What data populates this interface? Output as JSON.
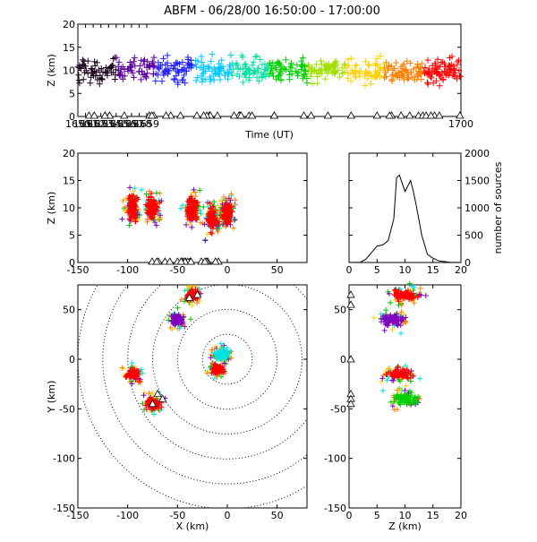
{
  "title": "ABFM - 06/28/00 16:50:00 - 17:00:00",
  "chart_data": [
    {
      "id": "time_height",
      "type": "scatter",
      "xlabel": "Time (UT)",
      "ylabel": "Z (km)",
      "xlim": [
        1650,
        1700
      ],
      "ylim": [
        0,
        20
      ],
      "xticks": [
        "1650",
        "1651",
        "1652",
        "1653",
        "1654",
        "1655",
        "1656",
        "1657",
        "1658",
        "1659",
        "1700"
      ],
      "yticks": [
        "0",
        "5",
        "10",
        "15",
        "20"
      ],
      "color_scale": [
        "#1a001a",
        "#5a00a0",
        "#2020ff",
        "#00c8ff",
        "#00e0a0",
        "#00d000",
        "#a0e000",
        "#ffd000",
        "#ff8000",
        "#ff0000"
      ],
      "z_band": [
        5,
        15
      ],
      "triangle_markers_at_z": 0
    },
    {
      "id": "xz_projection",
      "type": "scatter",
      "xlabel": "",
      "ylabel": "Z (km)",
      "xlim": [
        -150,
        80
      ],
      "ylim": [
        0,
        20
      ],
      "xticks": [
        "-150",
        "-100",
        "-50",
        "0",
        "50"
      ],
      "yticks": [
        "0",
        "5",
        "10",
        "15",
        "20"
      ],
      "clusters": [
        {
          "x": -95,
          "z": 10,
          "color": "#ff0000"
        },
        {
          "x": -75,
          "z": 10,
          "color": "#ff0000"
        },
        {
          "x": -35,
          "z": 10,
          "color": "#ff0000"
        },
        {
          "x": -15,
          "z": 8,
          "color": "#ff0000"
        },
        {
          "x": 0,
          "z": 9,
          "color": "#ff0000"
        }
      ]
    },
    {
      "id": "height_histogram",
      "type": "line",
      "xlabel": "",
      "ylabel": "number of sources",
      "xlim": [
        0,
        20
      ],
      "ylim": [
        0,
        2000
      ],
      "xticks": [
        "0",
        "5",
        "10",
        "15",
        "20"
      ],
      "yticks": [
        "0",
        "500",
        "1000",
        "1500",
        "2000"
      ],
      "z_km": [
        0,
        2,
        3,
        4,
        5,
        6,
        7,
        8,
        8.5,
        9,
        9.5,
        10,
        10.5,
        11,
        11.5,
        12,
        13,
        14,
        15,
        16,
        18,
        20
      ],
      "counts": [
        0,
        5,
        60,
        180,
        300,
        320,
        400,
        800,
        1550,
        1600,
        1450,
        1300,
        1400,
        1500,
        1300,
        1050,
        500,
        150,
        80,
        30,
        5,
        0
      ]
    },
    {
      "id": "plan_view",
      "type": "scatter",
      "xlabel": "X (km)",
      "ylabel": "Y (km)",
      "xlim": [
        -150,
        80
      ],
      "ylim": [
        -150,
        75
      ],
      "xticks": [
        "-150",
        "-100",
        "-50",
        "0",
        "50"
      ],
      "yticks": [
        "-150",
        "-100",
        "-50",
        "0",
        "50"
      ],
      "range_ring_center": [
        0,
        0
      ],
      "range_ring_radii_km": [
        25,
        50,
        75,
        100,
        125,
        150
      ],
      "clusters": [
        {
          "x": -35,
          "y": 65,
          "color": "#ff0000"
        },
        {
          "x": -50,
          "y": 40,
          "color": "#8000c0"
        },
        {
          "x": -95,
          "y": -15,
          "color": "#ff0000"
        },
        {
          "x": -75,
          "y": -45,
          "color": "#ff0000"
        },
        {
          "x": -5,
          "y": 5,
          "color": "#00e0e0"
        },
        {
          "x": -10,
          "y": -10,
          "color": "#ff0000"
        }
      ]
    },
    {
      "id": "yz_projection",
      "type": "scatter",
      "xlabel": "Z (km)",
      "ylabel": "",
      "xlim": [
        0,
        20
      ],
      "ylim": [
        -150,
        75
      ],
      "xticks": [
        "0",
        "5",
        "10",
        "15",
        "20"
      ],
      "yticks": [
        "-150",
        "-100",
        "-50",
        "0",
        "50"
      ],
      "clusters": [
        {
          "z": 10,
          "y": 65,
          "color": "#ff0000"
        },
        {
          "z": 8,
          "y": 40,
          "color": "#8000c0"
        },
        {
          "z": 9,
          "y": -15,
          "color": "#ff0000"
        },
        {
          "z": 10,
          "y": -40,
          "color": "#00d000"
        }
      ]
    }
  ]
}
